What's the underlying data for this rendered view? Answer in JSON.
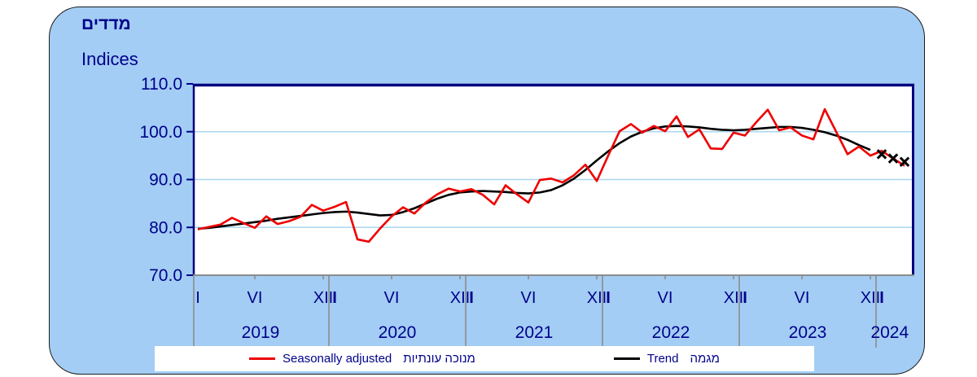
{
  "panel": {
    "background": "#A3CDF4",
    "border_color": "#1c1c1c"
  },
  "titles": {
    "hebrew": "מדדים",
    "english": "Indices"
  },
  "colors": {
    "text_navy": "#00008B",
    "plot_border_navy": "#000080",
    "axis_gray": "#8C8C8C",
    "gridline_blue": "#A9D6F0",
    "seasonally_adjusted_red": "#EE0000",
    "trend_black": "#000000"
  },
  "chart_data": {
    "type": "line",
    "title_hebrew": "מדדים",
    "title_english": "Indices",
    "x_unit": "month",
    "start_month": "2019-01",
    "end_month": "2024-03",
    "y_axis": {
      "min": 70,
      "max": 110,
      "tick_step": 10,
      "tick_labels": [
        "110.0",
        "100.0",
        "90.0",
        "80.0",
        "70.0"
      ],
      "gridlines": [
        80,
        90,
        100
      ],
      "grid_on": true
    },
    "x_axis": {
      "month_tick_labels": [
        "I",
        "VI",
        "XII"
      ],
      "years": [
        "2019",
        "2020",
        "2021",
        "2022",
        "2023",
        "2024"
      ]
    },
    "legend_position": "bottom",
    "series": [
      {
        "name": "Seasonally adjusted",
        "name_hebrew": "מנוכה עונתיות",
        "color": "#EE0000",
        "values": [
          79.6,
          80.1,
          80.6,
          82.0,
          80.9,
          79.9,
          82.3,
          80.7,
          81.3,
          82.2,
          84.7,
          83.5,
          84.3,
          85.3,
          77.5,
          77.0,
          79.8,
          82.3,
          84.2,
          82.9,
          85.2,
          86.9,
          88.1,
          87.5,
          88.0,
          86.8,
          84.8,
          88.8,
          86.9,
          85.2,
          89.9,
          90.2,
          89.4,
          90.9,
          93.1,
          89.7,
          95.0,
          100.1,
          101.6,
          99.8,
          101.2,
          100.1,
          103.2,
          98.9,
          100.5,
          96.5,
          96.4,
          99.8,
          99.2,
          102.0,
          104.6,
          100.3,
          100.9,
          99.2,
          98.4,
          104.7,
          100.0,
          95.3,
          96.9,
          95.0,
          96.0,
          94.4,
          92.9
        ]
      },
      {
        "name": "Trend",
        "name_hebrew": "מגמה",
        "color": "#000000",
        "values": [
          79.7,
          79.9,
          80.2,
          80.5,
          80.8,
          81.1,
          81.4,
          81.8,
          82.1,
          82.4,
          82.7,
          83.0,
          83.2,
          83.3,
          83.1,
          82.8,
          82.5,
          82.6,
          83.2,
          84.0,
          85.0,
          86.0,
          86.8,
          87.3,
          87.5,
          87.6,
          87.5,
          87.4,
          87.2,
          87.1,
          87.3,
          87.8,
          88.8,
          90.2,
          92.0,
          94.0,
          95.9,
          97.6,
          99.0,
          100.0,
          100.7,
          101.1,
          101.2,
          101.1,
          100.9,
          100.6,
          100.4,
          100.3,
          100.4,
          100.6,
          100.8,
          101.0,
          101.0,
          100.8,
          100.4,
          99.9,
          99.2,
          98.3,
          97.2,
          96.2
        ],
        "forecast": {
          "marker": "x",
          "months": [
            "2024-01",
            "2024-02",
            "2024-03"
          ],
          "values": [
            95.3,
            94.4,
            93.7
          ]
        }
      }
    ]
  },
  "legend": {
    "entries": [
      {
        "label_en": "Seasonally adjusted",
        "label_he": "מנוכה עונתיות",
        "color": "#EE0000"
      },
      {
        "label_en": "Trend",
        "label_he": "מגמה",
        "color": "#000000"
      }
    ]
  }
}
